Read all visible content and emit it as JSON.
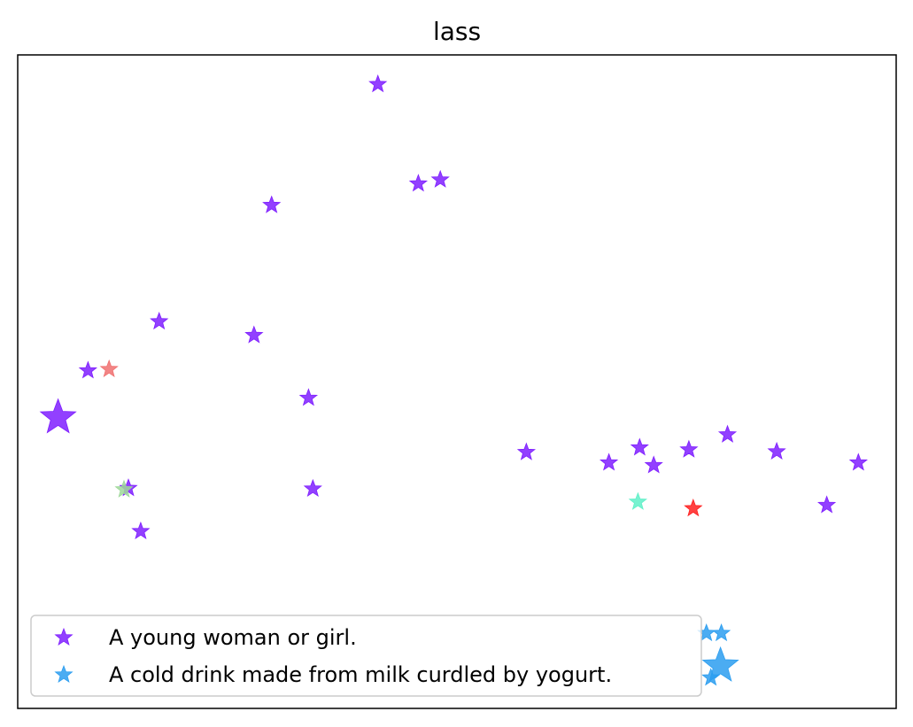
{
  "chart_data": {
    "type": "scatter",
    "title": "lass",
    "xlabel": "",
    "ylabel": "",
    "grid": false,
    "axis_ticks": false,
    "legend_position": "lower-left",
    "xlim": [
      0,
      1
    ],
    "ylim": [
      0,
      1
    ],
    "series": [
      {
        "name": "A young woman or girl.",
        "color": "#7f1fff",
        "points": [
          {
            "x": 0.41,
            "y": 0.955
          },
          {
            "x": 0.456,
            "y": 0.803
          },
          {
            "x": 0.481,
            "y": 0.809
          },
          {
            "x": 0.289,
            "y": 0.77
          },
          {
            "x": 0.161,
            "y": 0.592
          },
          {
            "x": 0.269,
            "y": 0.571
          },
          {
            "x": 0.08,
            "y": 0.517
          },
          {
            "x": 0.331,
            "y": 0.475
          },
          {
            "x": 0.046,
            "y": 0.445,
            "size": "large"
          },
          {
            "x": 0.126,
            "y": 0.337
          },
          {
            "x": 0.336,
            "y": 0.336
          },
          {
            "x": 0.14,
            "y": 0.271
          },
          {
            "x": 0.579,
            "y": 0.392
          },
          {
            "x": 0.673,
            "y": 0.376
          },
          {
            "x": 0.708,
            "y": 0.399
          },
          {
            "x": 0.724,
            "y": 0.372
          },
          {
            "x": 0.764,
            "y": 0.396
          },
          {
            "x": 0.808,
            "y": 0.419
          },
          {
            "x": 0.864,
            "y": 0.393
          },
          {
            "x": 0.957,
            "y": 0.376
          },
          {
            "x": 0.921,
            "y": 0.311
          }
        ]
      },
      {
        "name": "A cold drink made from milk curdled by yogurt.",
        "color": "#2c9ef0",
        "points": [
          {
            "x": 0.784,
            "y": 0.115
          },
          {
            "x": 0.801,
            "y": 0.115
          },
          {
            "x": 0.8,
            "y": 0.065,
            "size": "large"
          },
          {
            "x": 0.789,
            "y": 0.047
          }
        ]
      }
    ],
    "extra_points": [
      {
        "x": 0.104,
        "y": 0.519,
        "color": "#f07070"
      },
      {
        "x": 0.121,
        "y": 0.335,
        "color": "#9fd89a"
      },
      {
        "x": 0.706,
        "y": 0.316,
        "color": "#5ff0c8"
      },
      {
        "x": 0.769,
        "y": 0.306,
        "color": "#ff2020"
      }
    ]
  }
}
